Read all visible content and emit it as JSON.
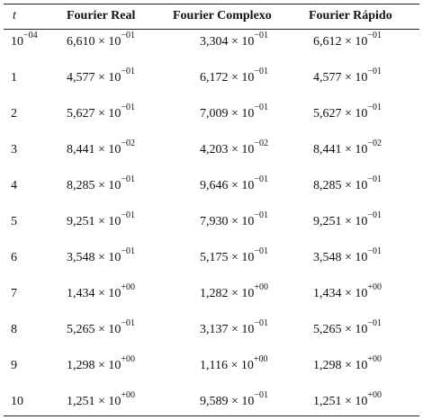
{
  "table": {
    "header": [
      "t",
      "Fourier Real",
      "Fourier Complexo",
      "Fourier Rápido"
    ],
    "rows": [
      [
        {
          "base": "10",
          "exp": "−04"
        },
        {
          "base": "6,610 × 10",
          "exp": "−01"
        },
        {
          "base": "3,304 × 10",
          "exp": "−01"
        },
        {
          "base": "6,612 × 10",
          "exp": "−01"
        }
      ],
      [
        "1",
        {
          "base": "4,577 × 10",
          "exp": "−01"
        },
        {
          "base": "6,172 × 10",
          "exp": "−01"
        },
        {
          "base": "4,577 × 10",
          "exp": "−01"
        }
      ],
      [
        "2",
        {
          "base": "5,627 × 10",
          "exp": "−01"
        },
        {
          "base": "7,009 × 10",
          "exp": "−01"
        },
        {
          "base": "5,627 × 10",
          "exp": "−01"
        }
      ],
      [
        "3",
        {
          "base": "8,441 × 10",
          "exp": "−02"
        },
        {
          "base": "4,203 × 10",
          "exp": "−02"
        },
        {
          "base": "8,441 × 10",
          "exp": "−02"
        }
      ],
      [
        "4",
        {
          "base": "8,285 × 10",
          "exp": "−01"
        },
        {
          "base": "9,646 × 10",
          "exp": "−01"
        },
        {
          "base": "8,285 × 10",
          "exp": "−01"
        }
      ],
      [
        "5",
        {
          "base": "9,251 × 10",
          "exp": "−01"
        },
        {
          "base": "7,930 × 10",
          "exp": "−01"
        },
        {
          "base": "9,251 × 10",
          "exp": "−01"
        }
      ],
      [
        "6",
        {
          "base": "3,548 × 10",
          "exp": "−01"
        },
        {
          "base": "5,175 × 10",
          "exp": "−01"
        },
        {
          "base": "3,548 × 10",
          "exp": "−01"
        }
      ],
      [
        "7",
        {
          "base": "1,434 × 10",
          "exp": "+00"
        },
        {
          "base": "1,282 × 10",
          "exp": "+00"
        },
        {
          "base": "1,434 × 10",
          "exp": "+00"
        }
      ],
      [
        "8",
        {
          "base": "5,265 × 10",
          "exp": "−01"
        },
        {
          "base": "3,137 × 10",
          "exp": "−01"
        },
        {
          "base": "5,265 × 10",
          "exp": "−01"
        }
      ],
      [
        "9",
        {
          "base": "1,298 × 10",
          "exp": "+00"
        },
        {
          "base": "1,116 × 10",
          "exp": "+00"
        },
        {
          "base": "1,298 × 10",
          "exp": "+00"
        }
      ],
      [
        "10",
        {
          "base": "1,251 × 10",
          "exp": "+00"
        },
        {
          "base": "9,589 × 10",
          "exp": "−01"
        },
        {
          "base": "1,251 × 10",
          "exp": "+00"
        }
      ]
    ]
  }
}
